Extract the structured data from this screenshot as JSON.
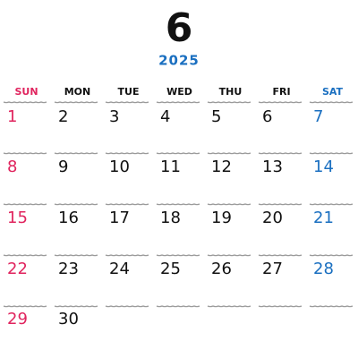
{
  "header": {
    "month": "6",
    "year": "2025"
  },
  "weekdays": [
    "SUN",
    "MON",
    "TUE",
    "WED",
    "THU",
    "FRI",
    "SAT"
  ],
  "weeks": [
    [
      1,
      2,
      3,
      4,
      5,
      6,
      7
    ],
    [
      8,
      9,
      10,
      11,
      12,
      13,
      14
    ],
    [
      15,
      16,
      17,
      18,
      19,
      20,
      21
    ],
    [
      22,
      23,
      24,
      25,
      26,
      27,
      28
    ],
    [
      29,
      30
    ]
  ]
}
